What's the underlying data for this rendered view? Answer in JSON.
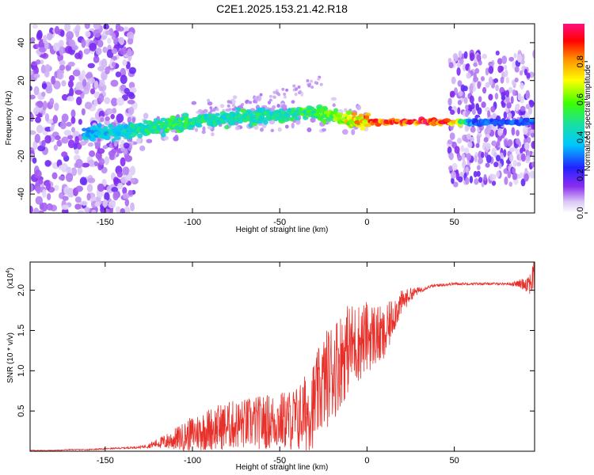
{
  "title": "C2E1.2025.153.21.42.R18",
  "chart_data": [
    {
      "type": "heatmap",
      "xlabel": "Height of straight line (km)",
      "ylabel": "Frequency (Hz)",
      "xlim": [
        -193,
        96
      ],
      "ylim": [
        -50,
        50
      ],
      "x_ticks": [
        -150,
        -100,
        -50,
        0,
        50
      ],
      "y_ticks": [
        -40,
        -20,
        0,
        20,
        40
      ],
      "x_tick_labels": [
        "-150",
        "-100",
        "-50",
        "0",
        "50"
      ],
      "y_tick_labels": [
        "-40",
        "-20",
        "0",
        "20",
        "40"
      ],
      "colorbar": {
        "label": "Normalized spectral amplitude",
        "range": [
          0,
          1
        ],
        "ticks": [
          0.0,
          0.2,
          0.4,
          0.6,
          0.8
        ],
        "tick_labels": [
          "0.0",
          "0.2",
          "0.4",
          "0.6",
          "0.8"
        ],
        "colormap": "rainbow (white-violet-blue-cyan-green-yellow-red-magenta)"
      },
      "ridge": [
        {
          "x": -160,
          "f": -8,
          "amp": 0.4
        },
        {
          "x": -140,
          "f": -7,
          "amp": 0.45
        },
        {
          "x": -125,
          "f": -5,
          "amp": 0.5
        },
        {
          "x": -110,
          "f": -3,
          "amp": 0.55
        },
        {
          "x": -95,
          "f": -1,
          "amp": 0.5
        },
        {
          "x": -80,
          "f": 0,
          "amp": 0.5
        },
        {
          "x": -65,
          "f": 1,
          "amp": 0.5
        },
        {
          "x": -50,
          "f": 2,
          "amp": 0.5
        },
        {
          "x": -35,
          "f": 3,
          "amp": 0.55
        },
        {
          "x": -22,
          "f": 2,
          "amp": 0.6
        },
        {
          "x": -12,
          "f": -1,
          "amp": 0.7
        },
        {
          "x": 0,
          "f": -2,
          "amp": 0.85
        },
        {
          "x": 15,
          "f": -2,
          "amp": 0.92
        },
        {
          "x": 30,
          "f": -2,
          "amp": 0.95
        },
        {
          "x": 46,
          "f": -2,
          "amp": 0.95
        },
        {
          "x": 60,
          "f": -2,
          "amp": 0.3
        },
        {
          "x": 94,
          "f": -2,
          "amp": 0.3
        }
      ]
    },
    {
      "type": "line",
      "xlabel": "Height of straight line (km)",
      "ylabel": "SNR (10 * v/v)",
      "multiplier_label": "(x10",
      "multiplier_exp": "4",
      "multiplier_close": ")",
      "xlim": [
        -193,
        96
      ],
      "ylim": [
        0,
        2.35
      ],
      "x_ticks": [
        -150,
        -100,
        -50,
        0,
        50
      ],
      "y_ticks": [
        0.5,
        1.0,
        1.5,
        2.0
      ],
      "x_tick_labels": [
        "-150",
        "-100",
        "-50",
        "0",
        "50"
      ],
      "y_tick_labels": [
        "0.5",
        "1.0",
        "1.5",
        "2.0"
      ],
      "color": "#e8302a",
      "series": [
        {
          "x": [
            -193,
            -180,
            -170,
            -160,
            -150,
            -140,
            -130,
            -125,
            -120,
            -115,
            -110,
            -105,
            -100,
            -95,
            -90,
            -85,
            -80,
            -75,
            -70,
            -65,
            -60,
            -55,
            -50,
            -45,
            -40,
            -35,
            -30,
            -25,
            -20,
            -15,
            -10,
            -5,
            0,
            5,
            10,
            15,
            20,
            25,
            30,
            35,
            40,
            45,
            50,
            55,
            60,
            65,
            70,
            75,
            80,
            85,
            90,
            93,
            96
          ],
          "y": [
            0.01,
            0.01,
            0.02,
            0.02,
            0.03,
            0.04,
            0.05,
            0.07,
            0.1,
            0.12,
            0.15,
            0.18,
            0.22,
            0.25,
            0.28,
            0.3,
            0.32,
            0.33,
            0.34,
            0.35,
            0.36,
            0.37,
            0.38,
            0.39,
            0.4,
            0.48,
            0.6,
            0.85,
            1.0,
            1.15,
            1.3,
            1.35,
            1.42,
            1.45,
            1.4,
            1.7,
            1.85,
            1.95,
            2.0,
            2.04,
            2.06,
            2.07,
            2.08,
            2.08,
            2.08,
            2.08,
            2.08,
            2.08,
            2.08,
            2.08,
            2.08,
            2.1,
            2.15
          ],
          "noise": [
            0.005,
            0.005,
            0.005,
            0.006,
            0.008,
            0.01,
            0.015,
            0.03,
            0.06,
            0.1,
            0.14,
            0.18,
            0.22,
            0.25,
            0.27,
            0.29,
            0.3,
            0.31,
            0.32,
            0.33,
            0.34,
            0.35,
            0.36,
            0.38,
            0.42,
            0.5,
            0.55,
            0.6,
            0.65,
            0.6,
            0.55,
            0.5,
            0.45,
            0.4,
            0.35,
            0.25,
            0.15,
            0.08,
            0.04,
            0.02,
            0.02,
            0.02,
            0.015,
            0.015,
            0.015,
            0.015,
            0.015,
            0.015,
            0.015,
            0.03,
            0.08,
            0.15,
            0.25
          ]
        }
      ]
    }
  ]
}
